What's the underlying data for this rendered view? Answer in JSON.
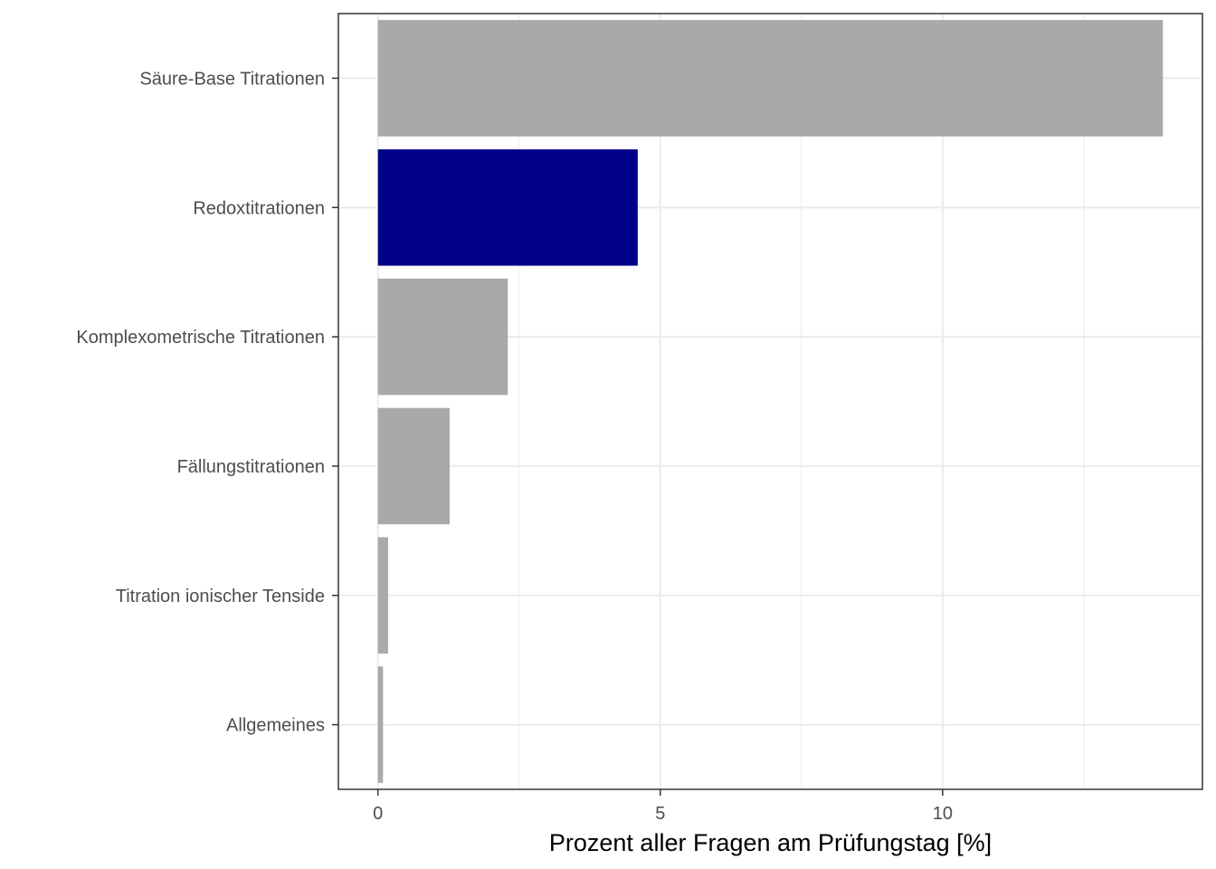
{
  "chart_data": {
    "type": "bar",
    "orientation": "horizontal",
    "categories": [
      "Säure-Base Titrationen",
      "Redoxtitrationen",
      "Komplexometrische Titrationen",
      "Fällungstitrationen",
      "Titration ionischer Tenside",
      "Allgemeines"
    ],
    "values": [
      13.9,
      4.6,
      2.3,
      1.27,
      0.18,
      0.09
    ],
    "highlight_category": "Redoxtitrationen",
    "colors": {
      "default": "#a9a9a9",
      "highlight": "#00008b",
      "grid": "#ebebeb",
      "panel_border": "#333333"
    },
    "xlabel": "Prozent aller Fragen am Prüfungstag [%]",
    "ylabel": "",
    "xlim": [
      -0.7,
      14.6
    ],
    "x_ticks": [
      0,
      5,
      10
    ],
    "x_minor_ticks": [
      2.5,
      7.5,
      12.5
    ],
    "grid": true,
    "legend": "none",
    "theme": "bw"
  }
}
